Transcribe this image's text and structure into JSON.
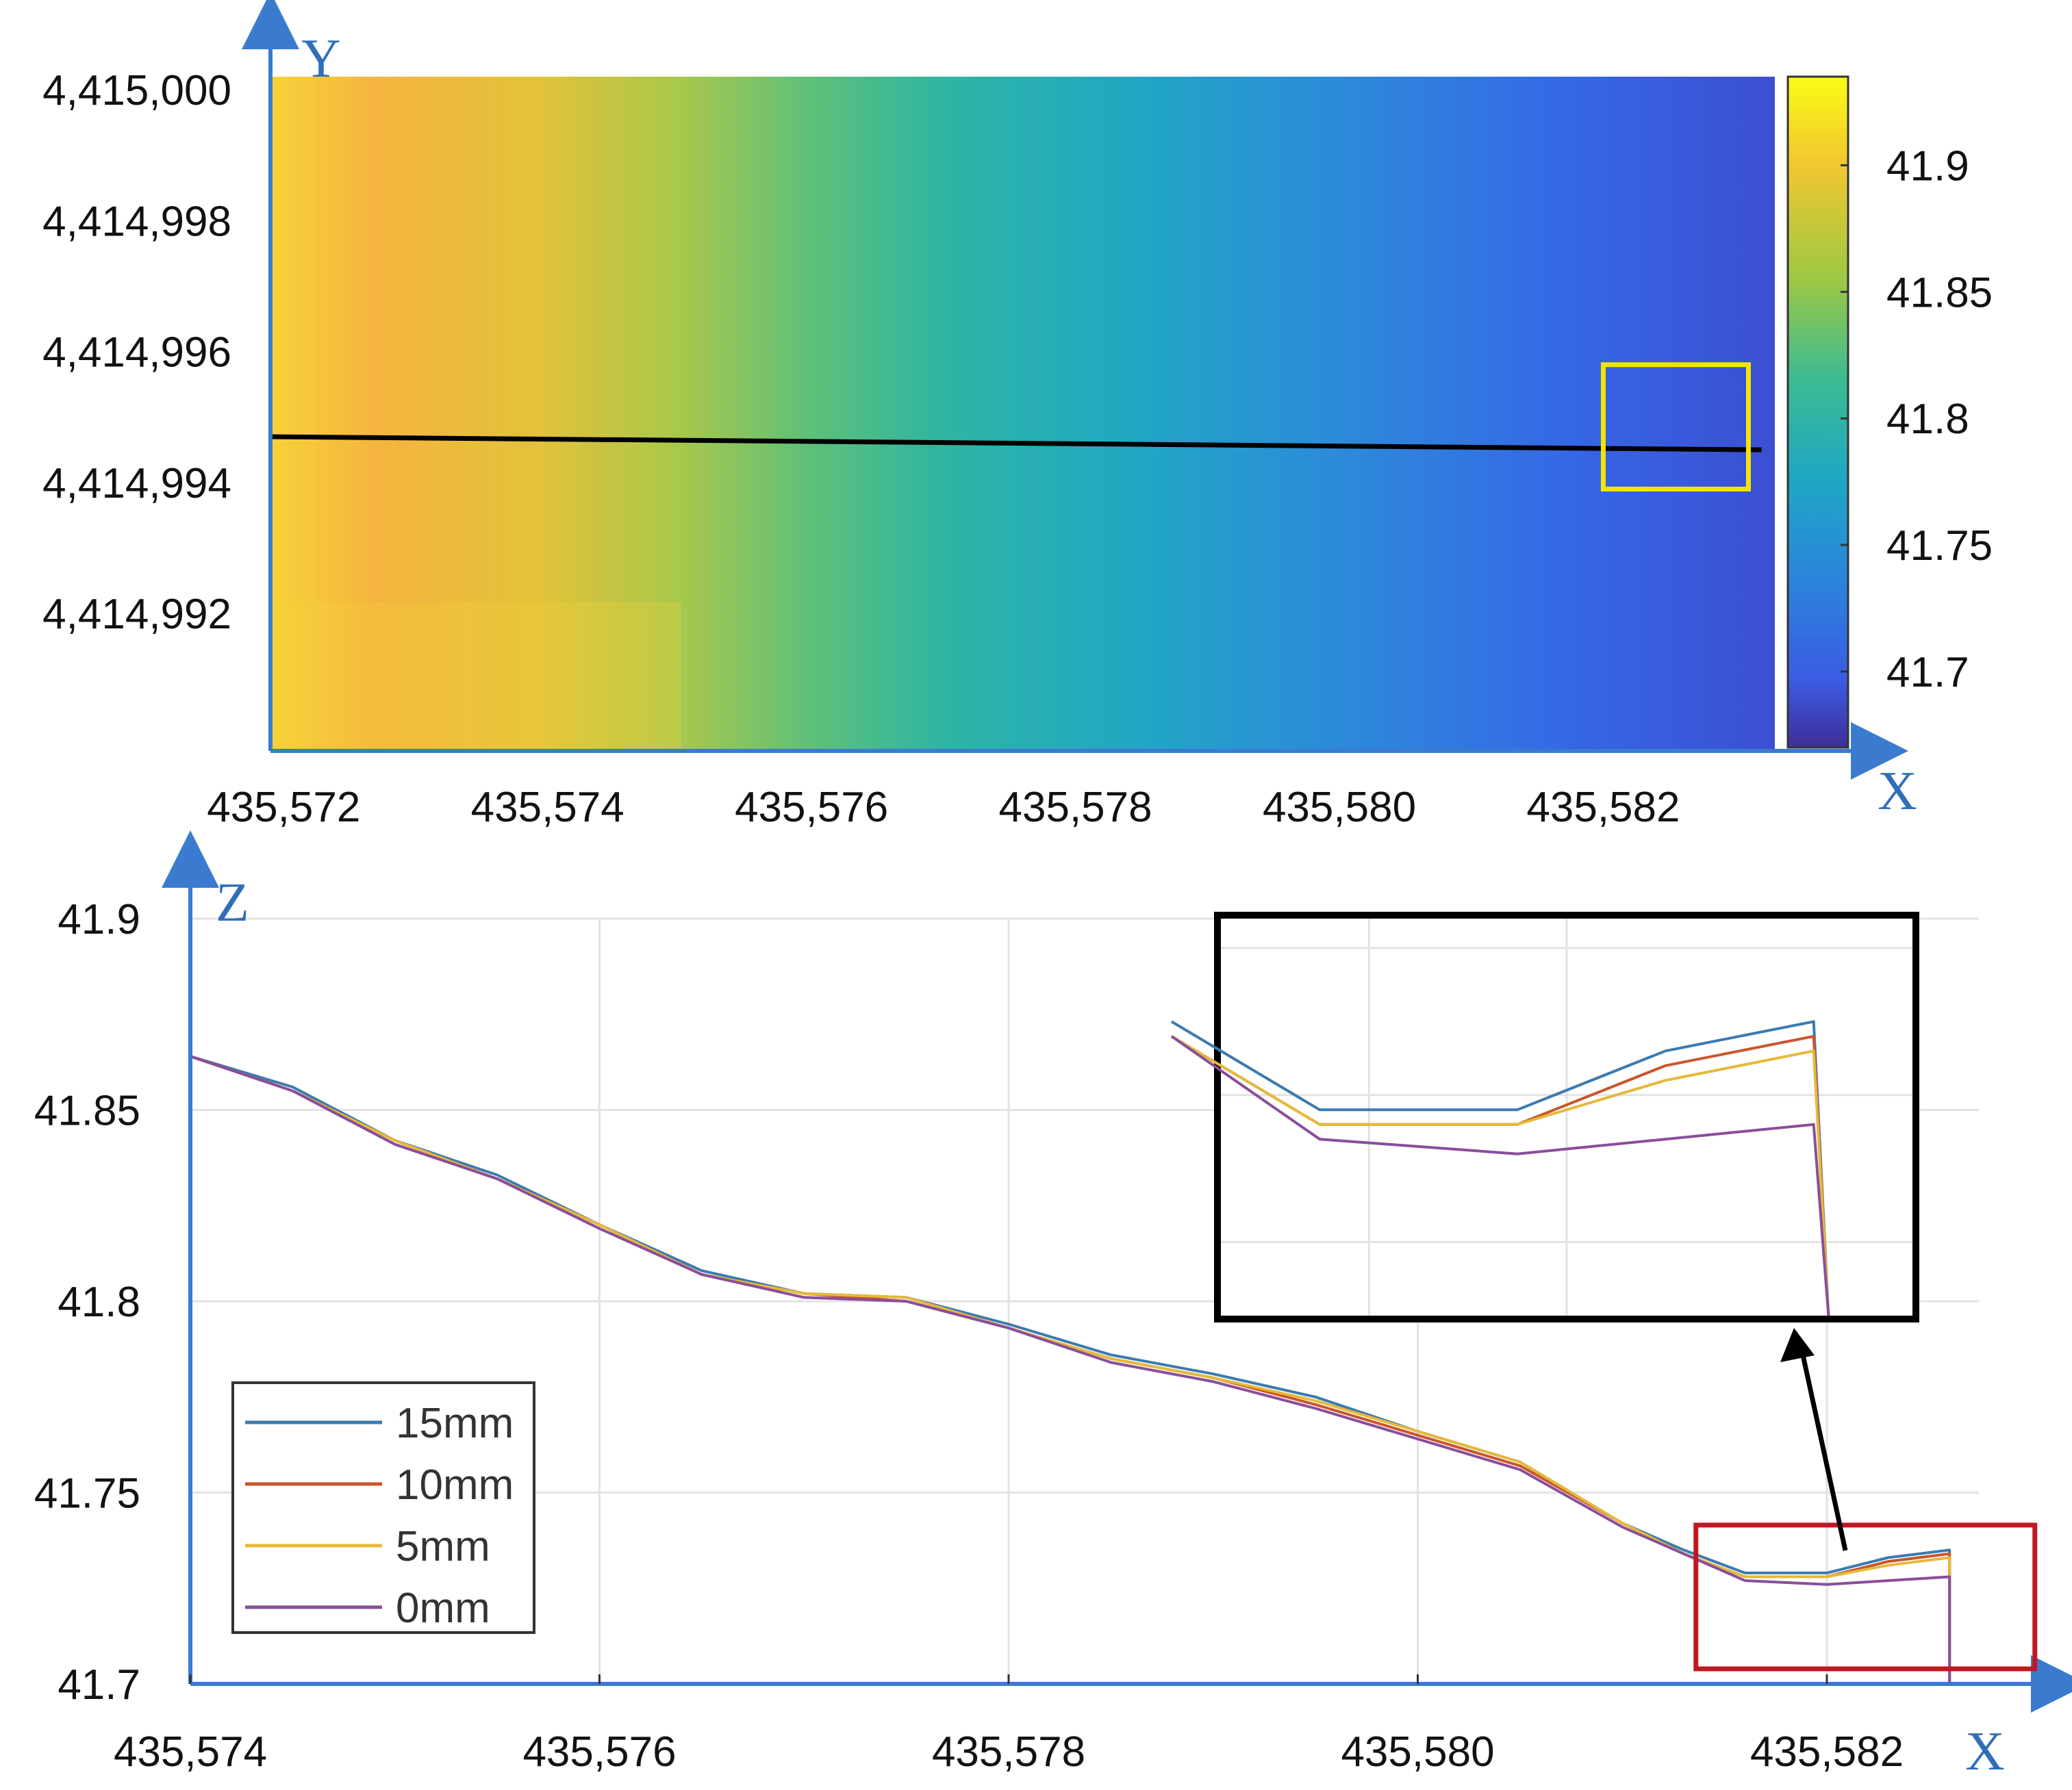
{
  "chart_data": [
    {
      "type": "heatmap",
      "title": "",
      "xlabel": "X",
      "ylabel": "Y",
      "xlim": [
        435571.9,
        435583.3
      ],
      "ylim": [
        4414989.9,
        4415000.2
      ],
      "x_ticks": [
        "435,572",
        "435,574",
        "435,576",
        "435,578",
        "435,580",
        "435,582"
      ],
      "x_tick_values": [
        435572,
        435574,
        435576,
        435578,
        435580,
        435582
      ],
      "y_ticks": [
        "4,415,000",
        "4,414,998",
        "4,414,996",
        "4,414,994",
        "4,414,992"
      ],
      "y_tick_values": [
        4415000,
        4414998,
        4414996,
        4414994,
        4414992
      ],
      "colorbar": {
        "range": [
          41.67,
          41.935
        ],
        "ticks": [
          "41.9",
          "41.85",
          "41.8",
          "41.75",
          "41.7"
        ],
        "tick_values": [
          41.9,
          41.85,
          41.8,
          41.75,
          41.7
        ]
      },
      "z_gradient_along_x": {
        "x": [
          435572,
          435573,
          435574,
          435575,
          435576,
          435577,
          435578,
          435579,
          435580,
          435581,
          435582,
          435583
        ],
        "z": [
          41.9,
          41.885,
          41.87,
          41.855,
          41.825,
          41.805,
          41.79,
          41.77,
          41.755,
          41.745,
          41.735,
          41.72
        ]
      },
      "profile_line": {
        "x": [
          435571.9,
          435583.2
        ],
        "y": [
          4414994.7,
          4414994.5
        ],
        "color": "#000000"
      },
      "highlight_box": {
        "x": [
          435582.0,
          435583.1
        ],
        "y": [
          4414993.9,
          4414995.8
        ],
        "color": "#f2e600"
      }
    },
    {
      "type": "line",
      "title": "",
      "xlabel": "X",
      "ylabel": "Z",
      "xlim": [
        435574,
        435582.8
      ],
      "ylim": [
        41.7,
        41.9
      ],
      "x_ticks": [
        "435,574",
        "435,576",
        "435,578",
        "435,580",
        "435,582"
      ],
      "x_tick_values": [
        435574,
        435576,
        435578,
        435580,
        435582
      ],
      "y_ticks": [
        "41.9",
        "41.85",
        "41.8",
        "41.75",
        "41.7"
      ],
      "y_tick_values": [
        41.9,
        41.85,
        41.8,
        41.75,
        41.7
      ],
      "grid": true,
      "legend_position": "bottom-left",
      "x": [
        435574,
        435574.5,
        435575,
        435575.5,
        435576,
        435576.5,
        435577,
        435577.5,
        435578,
        435578.5,
        435579,
        435579.5,
        435580,
        435580.5,
        435581,
        435581.3,
        435581.6,
        435582,
        435582.3,
        435582.6
      ],
      "series": [
        {
          "name": "15mm",
          "color": "#3a7bb0",
          "values": [
            41.864,
            41.856,
            41.842,
            41.833,
            41.82,
            41.808,
            41.802,
            41.801,
            41.794,
            41.786,
            41.781,
            41.775,
            41.766,
            41.758,
            41.742,
            41.735,
            41.729,
            41.729,
            41.733,
            41.735
          ]
        },
        {
          "name": "10mm",
          "color": "#c9562a",
          "values": [
            41.864,
            41.855,
            41.842,
            41.832,
            41.82,
            41.807,
            41.802,
            41.8,
            41.793,
            41.785,
            41.78,
            41.773,
            41.765,
            41.757,
            41.742,
            41.734,
            41.728,
            41.728,
            41.732,
            41.734
          ]
        },
        {
          "name": "5mm",
          "color": "#e6b93a",
          "values": [
            41.864,
            41.855,
            41.842,
            41.832,
            41.82,
            41.807,
            41.802,
            41.801,
            41.793,
            41.785,
            41.78,
            41.774,
            41.766,
            41.758,
            41.742,
            41.734,
            41.728,
            41.728,
            41.731,
            41.733
          ]
        },
        {
          "name": "0mm",
          "color": "#8a4e9a",
          "values": [
            41.864,
            41.855,
            41.841,
            41.832,
            41.819,
            41.807,
            41.801,
            41.8,
            41.793,
            41.784,
            41.779,
            41.772,
            41.764,
            41.756,
            41.741,
            41.734,
            41.727,
            41.726,
            41.727,
            41.728
          ]
        }
      ],
      "inset": {
        "x_range": [
          435581.4,
          435582.8
        ],
        "y_range": [
          41.715,
          41.742
        ],
        "box_color": "#c0181f",
        "arrow": true
      }
    }
  ]
}
